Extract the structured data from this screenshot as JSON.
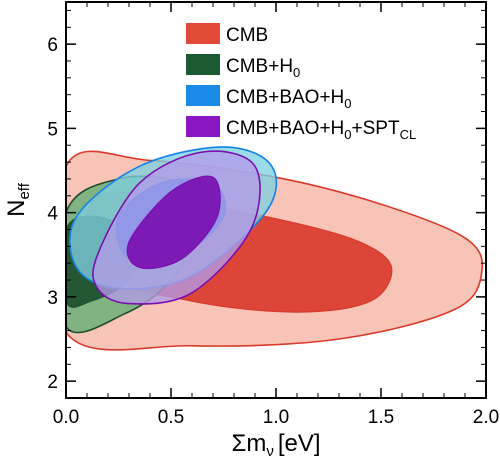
{
  "chart_data": {
    "type": "contour",
    "xlabel": "Σm",
    "xlabel_sub": "ν",
    "xlabel_unit": "[eV]",
    "ylabel": "N",
    "ylabel_sub": "eff",
    "xlim": [
      0.0,
      2.0
    ],
    "ylim": [
      1.8,
      6.5
    ],
    "x_ticks": [
      0.0,
      0.5,
      1.0,
      1.5,
      2.0
    ],
    "x_tick_labels": [
      "0.0",
      "0.5",
      "1.0",
      "1.5",
      "2.0"
    ],
    "y_ticks": [
      2,
      3,
      4,
      5,
      6
    ],
    "y_tick_labels": [
      "2",
      "3",
      "4",
      "5",
      "6"
    ],
    "legend_position": "top-right",
    "series": [
      {
        "name": "CMB",
        "legend_parts": [
          {
            "t": "CMB"
          }
        ],
        "colors": {
          "inner": "#d93a2b",
          "outer": "#f5b3a3",
          "legend": "#e24a38"
        },
        "contours": {
          "outer_95": [
            [
              0.0,
              4.55
            ],
            [
              0.4,
              4.62
            ],
            [
              1.0,
              4.42
            ],
            [
              1.5,
              4.1
            ],
            [
              1.9,
              3.7
            ],
            [
              1.98,
              3.3
            ],
            [
              1.85,
              2.85
            ],
            [
              1.3,
              2.5
            ],
            [
              0.6,
              2.42
            ],
            [
              0.0,
              2.58
            ]
          ],
          "inner_68": [
            [
              0.15,
              4.2
            ],
            [
              0.6,
              4.1
            ],
            [
              1.05,
              3.9
            ],
            [
              1.4,
              3.65
            ],
            [
              1.55,
              3.35
            ],
            [
              1.45,
              2.95
            ],
            [
              1.1,
              2.82
            ],
            [
              0.6,
              2.95
            ],
            [
              0.15,
              3.3
            ]
          ]
        }
      },
      {
        "name": "CMB+H0",
        "legend_parts": [
          {
            "t": "CMB+H"
          },
          {
            "t": "0",
            "sub": true
          }
        ],
        "colors": {
          "inner": "#1c4f2e",
          "outer": "#5fae72",
          "legend": "#1c5a34"
        },
        "contours": {
          "outer_95": [
            [
              0.0,
              4.0
            ],
            [
              0.25,
              4.4
            ],
            [
              0.55,
              4.35
            ],
            [
              0.65,
              3.9
            ],
            [
              0.5,
              3.2
            ],
            [
              0.28,
              2.8
            ],
            [
              0.0,
              2.65
            ]
          ],
          "inner_68": [
            [
              0.0,
              3.8
            ],
            [
              0.15,
              3.95
            ],
            [
              0.35,
              3.7
            ],
            [
              0.3,
              3.2
            ],
            [
              0.12,
              2.95
            ],
            [
              0.0,
              2.95
            ]
          ]
        }
      },
      {
        "name": "CMB+BAO+H0",
        "legend_parts": [
          {
            "t": "CMB+BAO+H"
          },
          {
            "t": "0",
            "sub": true
          }
        ],
        "colors": {
          "inner": "#1583e8",
          "outer": "#7fcfe0",
          "legend": "#1a8ae8"
        },
        "contours": {
          "outer_95": [
            [
              0.05,
              3.95
            ],
            [
              0.35,
              4.55
            ],
            [
              0.75,
              4.78
            ],
            [
              0.98,
              4.55
            ],
            [
              0.95,
              4.0
            ],
            [
              0.6,
              3.25
            ],
            [
              0.25,
              3.1
            ],
            [
              0.05,
              3.35
            ]
          ],
          "inner_68": [
            [
              0.25,
              3.95
            ],
            [
              0.45,
              4.35
            ],
            [
              0.7,
              4.35
            ],
            [
              0.75,
              3.95
            ],
            [
              0.55,
              3.5
            ],
            [
              0.3,
              3.45
            ]
          ]
        }
      },
      {
        "name": "CMB+BAO+H0+SPTCL",
        "legend_parts": [
          {
            "t": "CMB+BAO+H"
          },
          {
            "t": "0",
            "sub": true
          },
          {
            "t": "+SPT"
          },
          {
            "t": "CL",
            "sub": true
          }
        ],
        "colors": {
          "inner": "#7a0fb0",
          "outer": "#b39be8",
          "legend": "#8b16c4"
        },
        "contours": {
          "outer_95": [
            [
              0.15,
              3.5
            ],
            [
              0.35,
              4.35
            ],
            [
              0.65,
              4.72
            ],
            [
              0.9,
              4.55
            ],
            [
              0.88,
              3.8
            ],
            [
              0.6,
              3.05
            ],
            [
              0.3,
              2.92
            ],
            [
              0.15,
              3.1
            ]
          ],
          "inner_68": [
            [
              0.3,
              3.65
            ],
            [
              0.5,
              4.25
            ],
            [
              0.7,
              4.42
            ],
            [
              0.72,
              3.95
            ],
            [
              0.55,
              3.45
            ],
            [
              0.35,
              3.35
            ]
          ]
        }
      }
    ]
  }
}
